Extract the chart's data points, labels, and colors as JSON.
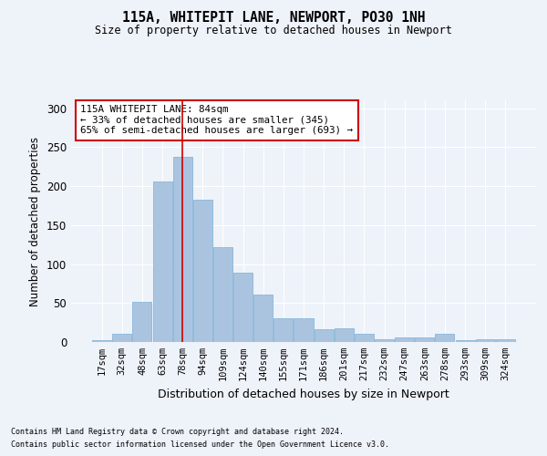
{
  "title": "115A, WHITEPIT LANE, NEWPORT, PO30 1NH",
  "subtitle": "Size of property relative to detached houses in Newport",
  "xlabel": "Distribution of detached houses by size in Newport",
  "ylabel": "Number of detached properties",
  "categories": [
    "17sqm",
    "32sqm",
    "48sqm",
    "63sqm",
    "78sqm",
    "94sqm",
    "109sqm",
    "124sqm",
    "140sqm",
    "155sqm",
    "171sqm",
    "186sqm",
    "201sqm",
    "217sqm",
    "232sqm",
    "247sqm",
    "263sqm",
    "278sqm",
    "293sqm",
    "309sqm",
    "324sqm"
  ],
  "values": [
    2,
    11,
    52,
    206,
    238,
    182,
    122,
    89,
    61,
    30,
    30,
    16,
    17,
    11,
    4,
    6,
    6,
    11,
    2,
    4,
    3
  ],
  "bar_color": "#aac4e0",
  "bar_edge_color": "#7aafd4",
  "ylim": [
    0,
    310
  ],
  "yticks": [
    0,
    50,
    100,
    150,
    200,
    250,
    300
  ],
  "vline_x_index": 4,
  "annotation_title": "115A WHITEPIT LANE: 84sqm",
  "annotation_line1": "← 33% of detached houses are smaller (345)",
  "annotation_line2": "65% of semi-detached houses are larger (693) →",
  "annotation_box_color": "#ffffff",
  "annotation_box_edge": "#cc0000",
  "vline_color": "#cc0000",
  "background_color": "#eef2f9",
  "grid_color": "#ffffff",
  "footer1": "Contains HM Land Registry data © Crown copyright and database right 2024.",
  "footer2": "Contains public sector information licensed under the Open Government Licence v3.0."
}
